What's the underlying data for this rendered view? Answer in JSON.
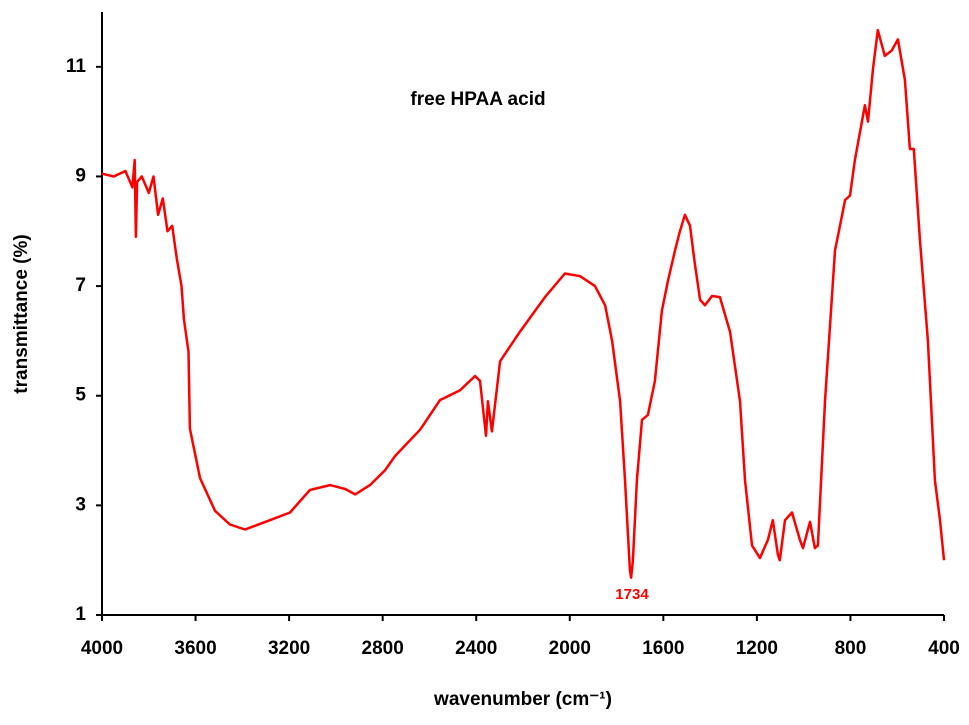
{
  "chart_data": {
    "type": "line",
    "title": "free HPAA acid",
    "x_label": "wavenumber (cm⁻¹)",
    "y_label": "transmittance (%)",
    "xlim": [
      4000,
      400
    ],
    "xticks": [
      4000,
      3600,
      3200,
      2800,
      2400,
      2000,
      1600,
      1200,
      800,
      400
    ],
    "ylim": [
      1,
      12
    ],
    "yticks": [
      1,
      3,
      5,
      7,
      9,
      11
    ],
    "grid": false,
    "peak_labels": [
      {
        "value": 1734,
        "label": "1734"
      }
    ],
    "series": [
      {
        "color": "#ff0000",
        "x": [
          4000,
          3950,
          3900,
          3870,
          3860,
          3855,
          3850,
          3830,
          3800,
          3780,
          3760,
          3740,
          3720,
          3700,
          3680,
          3660,
          3650,
          3630,
          3624,
          3581,
          3517,
          3453,
          3389,
          3282,
          3196,
          3111,
          3025,
          2961,
          2918,
          2854,
          2790,
          2747,
          2640,
          2555,
          2469,
          2405,
          2384,
          2358,
          2350,
          2333,
          2298,
          2213,
          2106,
          2021,
          1956,
          1892,
          1849,
          1819,
          1785,
          1764,
          1743,
          1738,
          1730,
          1713,
          1691,
          1666,
          1636,
          1606,
          1580,
          1550,
          1529,
          1508,
          1486,
          1465,
          1443,
          1422,
          1392,
          1358,
          1315,
          1272,
          1251,
          1221,
          1187,
          1153,
          1132,
          1110,
          1102,
          1080,
          1050,
          1016,
          1003,
          973,
          952,
          939,
          909,
          866,
          823,
          802,
          781,
          738,
          725,
          704,
          683,
          653,
          623,
          597,
          567,
          546,
          529,
          503,
          469,
          439,
          417,
          400
        ],
        "values": [
          9.05,
          9.0,
          9.1,
          8.8,
          9.3,
          7.9,
          8.9,
          9.0,
          8.7,
          9.0,
          8.3,
          8.6,
          8.0,
          8.1,
          7.5,
          7.0,
          6.4,
          5.8,
          4.4,
          3.5,
          2.9,
          2.65,
          2.56,
          2.73,
          2.87,
          3.28,
          3.37,
          3.3,
          3.2,
          3.37,
          3.64,
          3.9,
          4.38,
          4.92,
          5.1,
          5.36,
          5.27,
          4.27,
          4.9,
          4.35,
          5.63,
          6.17,
          6.8,
          7.23,
          7.18,
          7.0,
          6.65,
          6.0,
          4.9,
          3.46,
          1.82,
          1.68,
          2.0,
          3.46,
          4.56,
          4.65,
          5.27,
          6.55,
          7.1,
          7.65,
          8.0,
          8.3,
          8.1,
          7.4,
          6.75,
          6.65,
          6.82,
          6.8,
          6.17,
          4.9,
          3.46,
          2.27,
          2.04,
          2.37,
          2.73,
          2.1,
          2.0,
          2.73,
          2.87,
          2.37,
          2.22,
          2.7,
          2.22,
          2.27,
          4.9,
          7.65,
          8.57,
          8.65,
          9.3,
          10.3,
          10.0,
          10.95,
          11.67,
          11.2,
          11.3,
          11.5,
          10.76,
          9.5,
          9.5,
          7.85,
          6.0,
          3.46,
          2.73,
          2.0
        ]
      }
    ]
  }
}
